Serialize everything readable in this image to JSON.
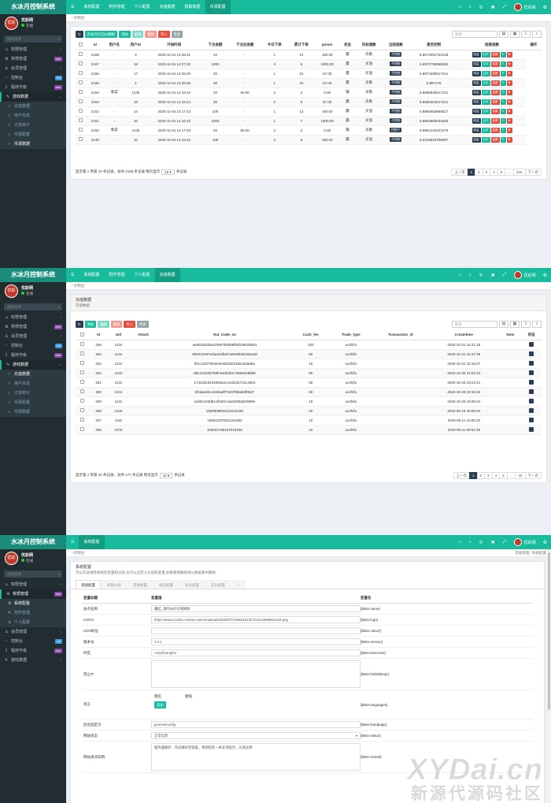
{
  "brand": {
    "name": "水冰月控制系统"
  },
  "user": {
    "name": "优彩网",
    "status": "在线",
    "avatar_text": "优彩"
  },
  "sidebar": {
    "search_placeholder": "搜索菜单",
    "items": [
      {
        "label": "权限管理",
        "icon": "users-icon",
        "badge": ""
      },
      {
        "label": "常规管理",
        "icon": "cog-icon",
        "badge": "new"
      },
      {
        "label": "会员管理",
        "icon": "user-icon",
        "badge": ""
      },
      {
        "label": "控制台",
        "icon": "dashboard-icon",
        "badge": "hot"
      },
      {
        "label": "程序升级",
        "icon": "upload-icon",
        "badge": "new"
      },
      {
        "label": "游戏数据",
        "icon": "gamepad-icon",
        "badge": ""
      }
    ],
    "game_sub": [
      "充值数据",
      "用户信息",
      "订单统计",
      "币源配置",
      "币源数据"
    ],
    "config_sub": [
      "系统配置",
      "附件管理",
      "个人配置"
    ]
  },
  "colors": {
    "accent": "#18bc9c",
    "sidebar": "#222d32",
    "dark": "#2c3e50",
    "danger": "#e74c3c"
  },
  "panel1": {
    "nav": [
      "系统配置",
      "附件管理",
      "个人配置",
      "充值数据",
      "报取数据",
      "币源配置"
    ],
    "breadcrumb": "控制台",
    "toolbar": [
      "开关开启/自动模板",
      "添加",
      "编辑",
      "删除",
      "导入",
      "更多"
    ],
    "search_placeholder": "搜索",
    "columns": [
      "Id",
      "用户名",
      "用户ID",
      "开始时间",
      "下注金额",
      "下注后金额",
      "今日下单",
      "累计下单",
      "points",
      "状态",
      "目标值数",
      "当前指数",
      "是否控制",
      "结果指数",
      "操作"
    ],
    "rows": [
      [
        "2158",
        "-",
        "3",
        "2020-11-04 14:28:41",
        "10",
        "-",
        "1",
        "12",
        "190.00",
        "赢",
        "买跌",
        "6.8974051724138",
        "6.8974051724138"
      ],
      [
        "2157",
        "-",
        "18",
        "2020-11-04 14:27:40",
        "1000",
        "-",
        "3",
        "8",
        "1900.00",
        "赢",
        "买涨",
        "6.8972706896552",
        "6.8972706896552"
      ],
      [
        "2156",
        "-",
        "17",
        "2020-11-04 14:26:39",
        "30",
        "-",
        "1",
        "15",
        "57.00",
        "赢",
        "买涨",
        "6.8971590517241",
        "6.8971590517241"
      ],
      [
        "2155",
        "-",
        "4",
        "2020-11-04 14:25:38",
        "30",
        "-",
        "1",
        "10",
        "57.00",
        "赢",
        "买跌",
        "6.897175",
        "6.897175"
      ],
      [
        "2154",
        "春菜",
        "1135",
        "2020-11-04 14:19:22",
        "20",
        "60.00",
        "2",
        "2",
        "0.00",
        "输",
        "买跌",
        "6.8966349137931",
        "6.8966840517241"
      ],
      [
        "2153",
        "-",
        "18",
        "2020-11-04 14:18:44",
        "30",
        "-",
        "3",
        "8",
        "57.00",
        "赢",
        "买跌",
        "6.8965403017241",
        "6.8965403017241"
      ],
      [
        "2152",
        "-",
        "14",
        "2020-11-04 14:17:43",
        "100",
        "-",
        "1",
        "13",
        "190.00",
        "赢",
        "买涨",
        "6.8965053965517",
        "6.8965053965517"
      ],
      [
        "2151",
        "-",
        "16",
        "2020-11-04 14:16:43",
        "1000",
        "-",
        "1",
        "7",
        "1900.00",
        "赢",
        "买涨",
        "6.8964993534483",
        "6.8964993534483"
      ],
      [
        "2150",
        "春菜",
        "1135",
        "2020-11-04 14:17:03",
        "20",
        "80.00",
        "2",
        "2",
        "0.00",
        "输",
        "买跌",
        "6.8965174568966",
        "6.8964142241379"
      ],
      [
        "2149",
        "-",
        "10",
        "2020-11-04 14:15:42",
        "100",
        "-",
        "3",
        "8",
        "190.00",
        "赢",
        "买涨",
        "6.0318523706897",
        "6.0318523706897"
      ]
    ],
    "control_tags": [
      "不控制",
      "不控制",
      "不控制",
      "不控制",
      "不控制",
      "不控制",
      "不控制",
      "不控制",
      "控制下",
      "不控制"
    ],
    "row_ops": [
      "收益",
      "公平",
      "结果"
    ],
    "pager_text_a": "显示第 1 到第 10 条记录，总共 2158 条记录 每页显示",
    "pager_size": "10",
    "pager_text_b": "条记录",
    "pages": [
      "上一页",
      "1",
      "2",
      "3",
      "4",
      "5",
      "...",
      "216",
      "下一页"
    ]
  },
  "panel2": {
    "nav": [
      "系统配置",
      "附件管理",
      "个人配置",
      "充值数据"
    ],
    "breadcrumb": "控制台",
    "heading": "充值数据",
    "subheading": "充值数据",
    "toolbar": [
      "添加",
      "编辑",
      "删除",
      "导入",
      "更多"
    ],
    "search_placeholder": "搜索",
    "columns": [
      "Id",
      "Uid",
      "Attach",
      "Out_trade_no",
      "Cash_fee",
      "Trade_type",
      "Transaction_id",
      "Createtime",
      "Note",
      "状态"
    ],
    "rows": [
      [
        "265",
        "1134",
        "",
        "ae0616d4bea1069789d59fb5b09e26b64",
        "100",
        "uozhifu",
        "",
        "2020-10-31 15:41:18",
        ""
      ],
      [
        "264",
        "1134",
        "",
        "955210287edaa2d3bd7a9039bab49a4a8",
        "50",
        "uozhifu",
        "",
        "2020-10-31 15:37:39",
        ""
      ],
      [
        "263",
        "1134",
        "",
        "ffecc2d2705494943b1b03180c5da05a",
        "10",
        "uozhifu",
        "",
        "2020-10-31 15:19:37",
        ""
      ],
      [
        "262",
        "1133",
        "",
        "86c23434b7b8fc54d2d6174863e498b8",
        "50",
        "uozhifu",
        "",
        "2020-10-30 21:02:24",
        ""
      ],
      [
        "261",
        "1131",
        "",
        "17410dcd10406a52cceaf1d2722c40b4",
        "50",
        "uozhifu",
        "",
        "2020-10-29 23:24:21",
        ""
      ],
      [
        "260",
        "1131",
        "",
        "5f2dae84cc029aaff73437f8bab8f0627",
        "50",
        "uozhifu",
        "",
        "2020-10-29 23:16:46",
        ""
      ],
      [
        "259",
        "1131",
        "",
        "a1b5c423d81cfbe8cc4a4d35bab0999e",
        "10",
        "uozhifu",
        "",
        "2020-10-29 23:00:24",
        ""
      ],
      [
        "258",
        "1126",
        "",
        "156080984411261019S",
        "10",
        "uozhifu",
        "",
        "2019-06-16 20:09:04",
        ""
      ],
      [
        "257",
        "1116",
        "",
        "156021879311161052",
        "10",
        "uozhifu",
        "",
        "2019-06-11 10:06:33",
        ""
      ],
      [
        "256",
        "1076",
        "",
        "156021789107010155",
        "10",
        "uozhifu",
        "",
        "2019-06-11 09:51:29",
        ""
      ]
    ],
    "pager_text_a": "显示第 1 到第 10 条记录，总共 177 条记录 每页显示",
    "pager_size": "10",
    "pager_text_b": "条记录",
    "pages": [
      "上一页",
      "1",
      "2",
      "3",
      "4",
      "5",
      "...",
      "18",
      "下一页"
    ]
  },
  "panel3": {
    "nav": [
      "系统配置"
    ],
    "breadcrumb": "控制台",
    "breadcrumb_right": "常规管理 / 系统配置",
    "heading": "系统配置",
    "subheading": "可以在此增改系统的变量和分组,也可以自定义分组和变量,如果需要删除请从数据库中删除",
    "tabs": [
      "基础配置",
      "邮箱分组",
      "其他配置",
      "微信配置",
      "会员配置",
      "支付配置",
      "+"
    ],
    "columns": [
      "变量标题",
      "变量值",
      "变量名"
    ],
    "fields": [
      {
        "label": "站点名称",
        "value": "藏起_源码未存在网网网",
        "var": "{$site.name}"
      },
      {
        "label": "LOGO",
        "value": "https://www.ucodes.net/wp-content/uploads/2020/07/1595319130-fc4314fa8990e344.png",
        "var": "{$site.logo}"
      },
      {
        "label": "CDN地址",
        "value": "",
        "var": "{$site.cdnurl}"
      },
      {
        "label": "版本号",
        "value": "1.0.1",
        "var": "{$site.version}"
      },
      {
        "label": "时区",
        "value": "Asia/Shanghai",
        "var": "{$site.timezone}"
      },
      {
        "label": "禁止IP",
        "value": "",
        "var": "{$site.forbiddenip}"
      },
      {
        "label": "语言",
        "value": "",
        "var": "{$site.languages}"
      },
      {
        "label": "后台固定页",
        "value": "general/config",
        "var": "{$site.fixedpage}"
      },
      {
        "label": "网站状态",
        "value": "正常运营",
        "var": "{$site.status}"
      },
      {
        "label": "网站关闭说明",
        "value": "服务器维护，完成维护后恢复，感谢您的一并支持配合，久新左修",
        "var": "{$site.closed}"
      }
    ],
    "lang_key_label": "键名",
    "lang_val_label": "键值",
    "lang_add": "追加"
  },
  "watermark": {
    "line1": "XYDai.cn",
    "line2": "新源代源码社区"
  }
}
